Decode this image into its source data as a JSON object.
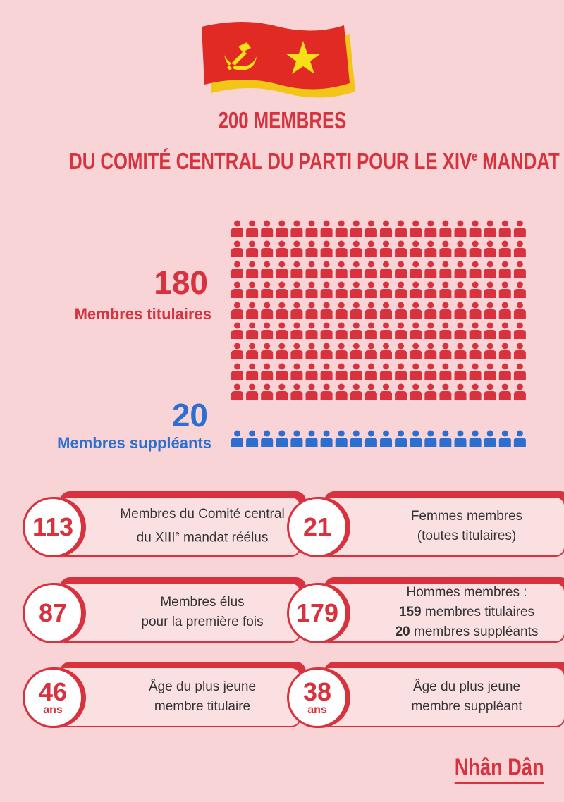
{
  "title": {
    "line1": "200 MEMBRES",
    "line2_main": "DU COMITÉ CENTRAL DU PARTI POUR LE XIV",
    "line2_sup": "e",
    "line2_end": " MANDAT"
  },
  "members": {
    "titular": {
      "count": 180,
      "label": "Membres titulaires",
      "color": "#d7323e"
    },
    "alternate": {
      "count": 20,
      "label": "Membres suppléants",
      "color": "#2c6fd1"
    }
  },
  "cards": [
    {
      "number": 113,
      "lines": [
        [
          {
            "text": "Membres du Comité central"
          }
        ],
        [
          {
            "text": "du XIII"
          },
          {
            "text": "e",
            "sup": true
          },
          {
            "text": " mandat réélus"
          }
        ]
      ]
    },
    {
      "number": 21,
      "lines": [
        [
          {
            "text": "Femmes membres"
          }
        ],
        [
          {
            "text": "(toutes titulaires)"
          }
        ]
      ]
    },
    {
      "number": 87,
      "lines": [
        [
          {
            "text": "Membres élus"
          }
        ],
        [
          {
            "text": "pour la première fois"
          }
        ]
      ]
    },
    {
      "number": 179,
      "lines": [
        [
          {
            "text": "Hommes membres :"
          }
        ],
        [
          {
            "text": "159",
            "bold": true
          },
          {
            "text": " membres titulaires"
          }
        ],
        [
          {
            "text": "20",
            "bold": true
          },
          {
            "text": " membres suppléants"
          }
        ]
      ]
    },
    {
      "number": 46,
      "unit": "ans",
      "lines": [
        [
          {
            "text": "Âge du plus jeune"
          }
        ],
        [
          {
            "text": "membre titulaire"
          }
        ]
      ]
    },
    {
      "number": 38,
      "unit": "ans",
      "lines": [
        [
          {
            "text": "Âge du plus jeune"
          }
        ],
        [
          {
            "text": "membre suppléant"
          }
        ]
      ]
    }
  ],
  "footer": {
    "brand": "Nhân Dân"
  }
}
